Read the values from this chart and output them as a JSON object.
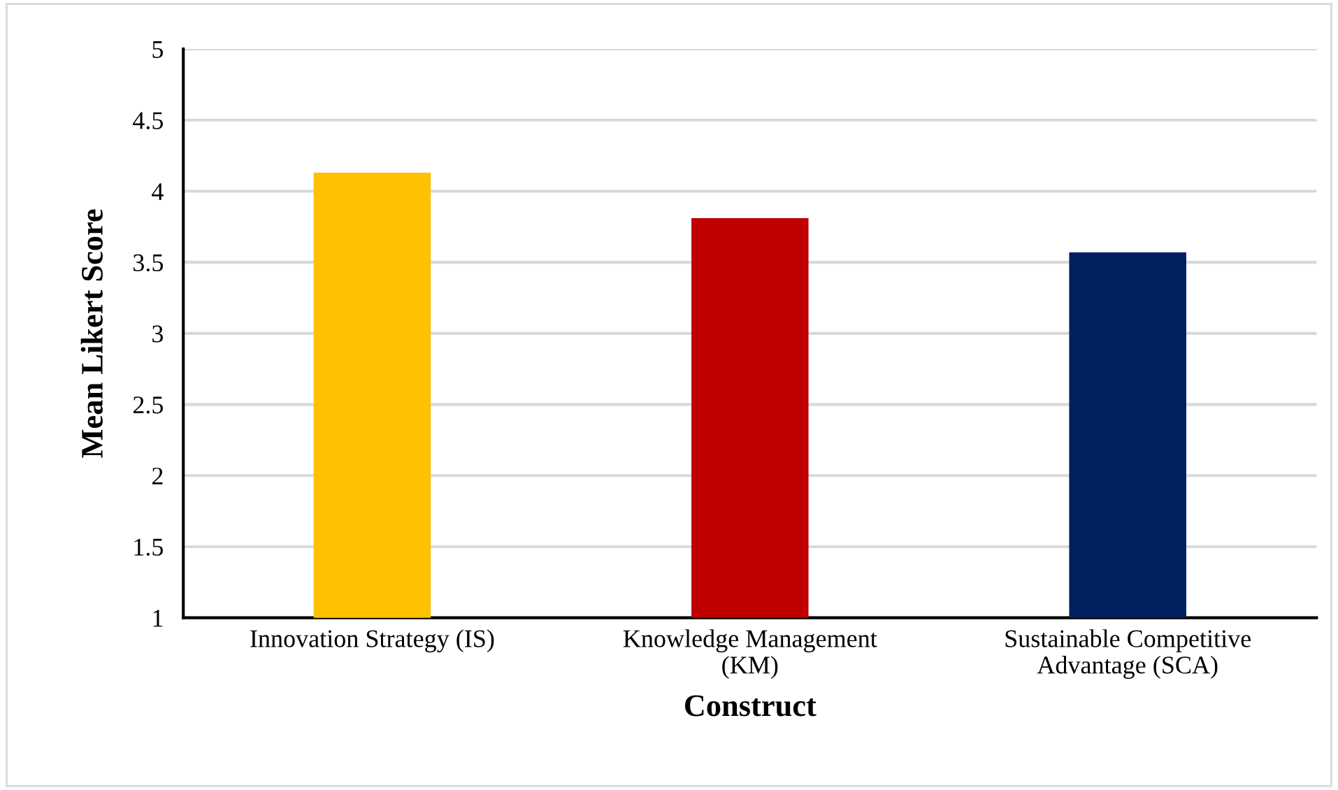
{
  "chart_data": {
    "type": "bar",
    "categories": [
      "Innovation Strategy (IS)",
      "Knowledge Management\n(KM)",
      "Sustainable Competitive\nAdvantage (SCA)"
    ],
    "values": [
      4.13,
      3.81,
      3.57
    ],
    "colors": [
      "#ffc000",
      "#c00000",
      "#002060"
    ],
    "xlabel": "Construct",
    "ylabel": "Mean Likert Score",
    "ylim": [
      1,
      5
    ],
    "yticks": [
      1,
      1.5,
      2,
      2.5,
      3,
      3.5,
      4,
      4.5,
      5
    ],
    "grid": "y",
    "legend": false
  }
}
